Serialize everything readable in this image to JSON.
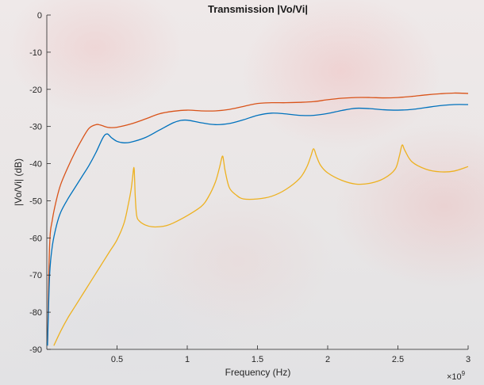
{
  "chart_data": {
    "type": "line",
    "title": "Transmission |Vo/Vi|",
    "xlabel": "Frequency (Hz)",
    "ylabel": "|Vo/Vi| (dB)",
    "x_exponent_label": "×10",
    "x_exponent_power": "9",
    "xlim": [
      0,
      3
    ],
    "ylim": [
      -90,
      0
    ],
    "x_scale_factor": 1000000000.0,
    "x_ticks": [
      0.5,
      1,
      1.5,
      2,
      2.5,
      3
    ],
    "x_tick_labels": [
      "0.5",
      "1",
      "1.5",
      "2",
      "2.5",
      "3"
    ],
    "y_ticks": [
      0,
      -10,
      -20,
      -30,
      -40,
      -50,
      -60,
      -70,
      -80,
      -90
    ],
    "y_tick_labels": [
      "0",
      "-10",
      "-20",
      "-30",
      "-40",
      "-50",
      "-60",
      "-70",
      "-80",
      "-90"
    ],
    "grid": false,
    "colors": {
      "axis": "#262626",
      "series_1": "#D95319",
      "series_2": "#0072BD",
      "series_3": "#EDB120"
    },
    "series": [
      {
        "color": "#D95319",
        "x": [
          0.005,
          0.02,
          0.04,
          0.07,
          0.1,
          0.15,
          0.2,
          0.25,
          0.3,
          0.35,
          0.38,
          0.42,
          0.45,
          0.5,
          0.6,
          0.7,
          0.8,
          0.9,
          1.0,
          1.1,
          1.2,
          1.3,
          1.4,
          1.5,
          1.6,
          1.7,
          1.8,
          1.9,
          2.0,
          2.1,
          2.2,
          2.3,
          2.4,
          2.5,
          2.6,
          2.7,
          2.8,
          2.9,
          3.0
        ],
        "y": [
          -88,
          -62,
          -55,
          -49.5,
          -45.5,
          -41,
          -37,
          -33.5,
          -30.5,
          -29.5,
          -29.6,
          -30.1,
          -30.3,
          -30.2,
          -29.3,
          -28,
          -26.6,
          -25.9,
          -25.6,
          -25.8,
          -25.8,
          -25.4,
          -24.6,
          -23.8,
          -23.6,
          -23.6,
          -23.5,
          -23.3,
          -22.8,
          -22.4,
          -22.2,
          -22.2,
          -22.3,
          -22.2,
          -21.9,
          -21.5,
          -21.2,
          -21.0,
          -21.1
        ]
      },
      {
        "color": "#0072BD",
        "x": [
          0.005,
          0.02,
          0.04,
          0.07,
          0.1,
          0.15,
          0.2,
          0.25,
          0.3,
          0.35,
          0.4,
          0.43,
          0.46,
          0.5,
          0.55,
          0.6,
          0.7,
          0.8,
          0.9,
          0.95,
          1.0,
          1.1,
          1.2,
          1.3,
          1.4,
          1.5,
          1.6,
          1.7,
          1.8,
          1.9,
          2.0,
          2.1,
          2.2,
          2.3,
          2.4,
          2.5,
          2.6,
          2.7,
          2.8,
          2.9,
          3.0
        ],
        "y": [
          -89,
          -70,
          -62,
          -56.5,
          -53,
          -49.5,
          -46.5,
          -43.5,
          -40.5,
          -37,
          -33,
          -32,
          -33,
          -34,
          -34.4,
          -34.2,
          -33,
          -31,
          -29,
          -28.4,
          -28.3,
          -29,
          -29.5,
          -29.2,
          -28.2,
          -27,
          -26.4,
          -26.6,
          -27,
          -27,
          -26.5,
          -25.7,
          -25.1,
          -25.2,
          -25.5,
          -25.6,
          -25.4,
          -24.9,
          -24.4,
          -24.1,
          -24.1
        ]
      },
      {
        "color": "#EDB120",
        "x": [
          0.05,
          0.1,
          0.15,
          0.2,
          0.25,
          0.3,
          0.35,
          0.4,
          0.45,
          0.5,
          0.55,
          0.58,
          0.6,
          0.61,
          0.62,
          0.625,
          0.63,
          0.64,
          0.66,
          0.7,
          0.75,
          0.8,
          0.85,
          0.9,
          1.0,
          1.1,
          1.15,
          1.2,
          1.23,
          1.25,
          1.26,
          1.27,
          1.3,
          1.35,
          1.4,
          1.5,
          1.6,
          1.7,
          1.8,
          1.85,
          1.88,
          1.9,
          1.92,
          1.95,
          2.0,
          2.1,
          2.2,
          2.3,
          2.4,
          2.48,
          2.51,
          2.53,
          2.55,
          2.6,
          2.7,
          2.8,
          2.9,
          3.0
        ],
        "y": [
          -89,
          -85,
          -81.5,
          -78.5,
          -75.5,
          -72.5,
          -69.5,
          -66.5,
          -63.5,
          -60.5,
          -56,
          -51,
          -47,
          -44,
          -41,
          -44,
          -49,
          -54,
          -55.5,
          -56.5,
          -57,
          -57,
          -56.7,
          -56,
          -54,
          -51.5,
          -49,
          -45,
          -41,
          -38,
          -39.5,
          -42,
          -46.5,
          -48.5,
          -49.5,
          -49.5,
          -48.8,
          -47,
          -44,
          -41,
          -38,
          -36,
          -38,
          -40.5,
          -42.5,
          -44.5,
          -45.5,
          -45.3,
          -44,
          -41.5,
          -38,
          -35,
          -36.5,
          -39.5,
          -41.5,
          -42.2,
          -42,
          -40.8
        ]
      }
    ]
  }
}
